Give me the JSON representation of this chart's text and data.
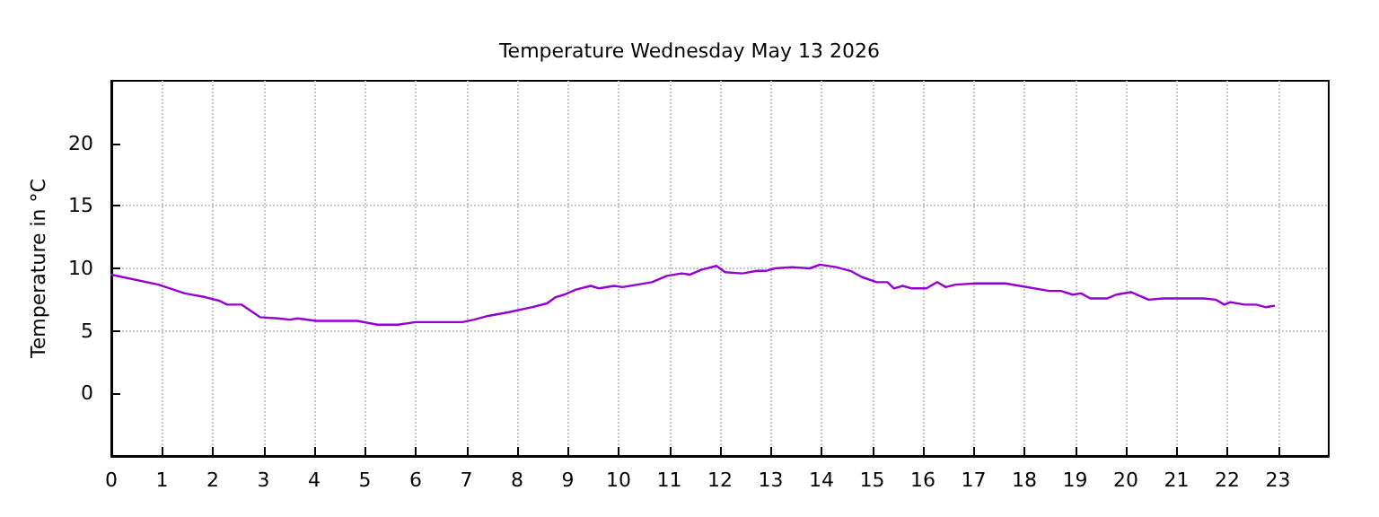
{
  "chart_data": {
    "type": "line",
    "title": "Temperature Wednesday May 13 2026",
    "ylabel": "Temperature in °C",
    "xlim": [
      0,
      24
    ],
    "xticks": [
      0,
      1,
      2,
      3,
      4,
      5,
      6,
      7,
      8,
      9,
      10,
      11,
      12,
      13,
      14,
      15,
      16,
      17,
      18,
      19,
      20,
      21,
      22,
      23
    ],
    "ylim": [
      -5,
      25
    ],
    "yticks": [
      0,
      5,
      10,
      15,
      20
    ],
    "grid": true,
    "marker": "none",
    "line_style": "solid",
    "series": [
      {
        "color": "#9400d3",
        "x": [
          0,
          0.93,
          1.45,
          1.85,
          2.14,
          2.28,
          2.57,
          2.93,
          3.29,
          3.52,
          3.67,
          4.04,
          4.85,
          5.25,
          5.65,
          6.0,
          6.92,
          7.15,
          7.43,
          7.84,
          8.3,
          8.59,
          8.76,
          8.93,
          9.16,
          9.45,
          9.62,
          9.91,
          10.08,
          10.37,
          10.66,
          10.95,
          11.24,
          11.41,
          11.64,
          11.93,
          12.1,
          12.44,
          12.73,
          12.9,
          13.08,
          13.42,
          13.77,
          13.97,
          14.29,
          14.57,
          14.8,
          15.09,
          15.3,
          15.43,
          15.6,
          15.78,
          16.07,
          16.28,
          16.45,
          16.64,
          17.05,
          17.62,
          17.91,
          18.49,
          18.72,
          18.95,
          19.12,
          19.3,
          19.64,
          19.81,
          20.1,
          20.45,
          20.73,
          21.54,
          21.77,
          21.94,
          22.06,
          22.34,
          22.57,
          22.75,
          22.92
        ],
        "values": [
          9.5,
          8.7,
          8.0,
          7.7,
          7.4,
          7.1,
          7.1,
          6.1,
          6.0,
          5.9,
          6.0,
          5.8,
          5.8,
          5.5,
          5.5,
          5.7,
          5.7,
          5.9,
          6.2,
          6.5,
          6.9,
          7.2,
          7.7,
          7.9,
          8.3,
          8.6,
          8.4,
          8.6,
          8.5,
          8.7,
          8.9,
          9.4,
          9.6,
          9.5,
          9.9,
          10.2,
          9.7,
          9.6,
          9.8,
          9.8,
          10.0,
          10.1,
          10.0,
          10.3,
          10.1,
          9.8,
          9.3,
          8.9,
          8.9,
          8.4,
          8.6,
          8.4,
          8.4,
          8.9,
          8.5,
          8.7,
          8.8,
          8.8,
          8.6,
          8.2,
          8.2,
          7.9,
          8.0,
          7.6,
          7.6,
          7.9,
          8.1,
          7.5,
          7.6,
          7.6,
          7.5,
          7.1,
          7.3,
          7.1,
          7.1,
          6.9,
          7.0
        ]
      }
    ]
  }
}
